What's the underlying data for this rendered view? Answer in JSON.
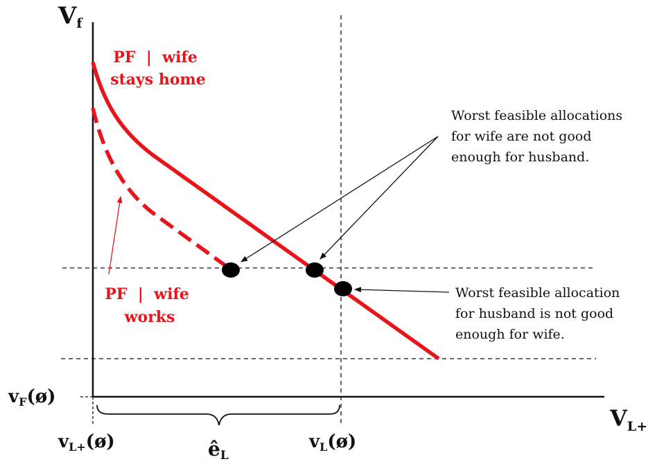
{
  "colors": {
    "frontier": "#e8141b",
    "ink": "#111111",
    "background": "#ffffff"
  },
  "axes": {
    "y_label": "V",
    "y_label_sub": "f",
    "x_label": "V",
    "x_label_sub": "L+"
  },
  "frontier_labels": {
    "stays_home_line1": "PF  |  wife",
    "stays_home_line2": "stays home",
    "works_line1": "PF  |  wife",
    "works_line2": "works"
  },
  "annotations": {
    "wife_note": [
      "Worst feasible allocations",
      "for wife are not good",
      "enough for husband."
    ],
    "husband_note": [
      "Worst feasible allocation",
      "for husband is not good",
      "enough for wife."
    ]
  },
  "tick_labels": {
    "vF_main": "v",
    "vF_sub": "F",
    "vF_tail": "(ø)",
    "vL_plus_main": "v",
    "vL_plus_sub": "L+",
    "vL_plus_tail": "(ø)",
    "eL_main": "ê",
    "eL_sub": "L",
    "vL_main": "v",
    "vL_sub": "L",
    "vL_tail": "(ø)"
  }
}
